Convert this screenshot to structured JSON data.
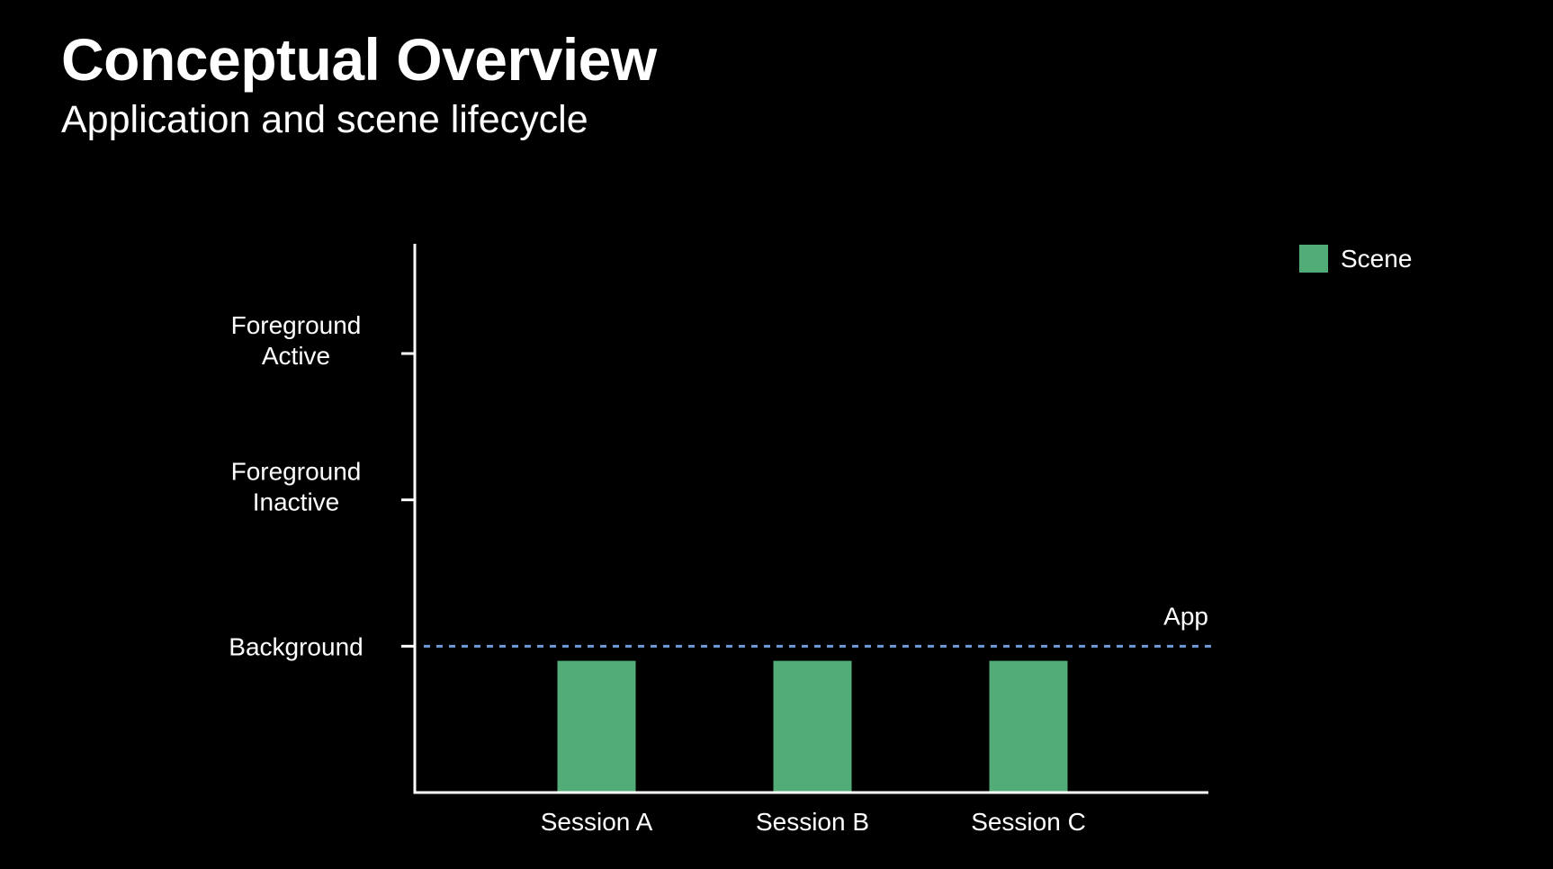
{
  "header": {
    "title": "Conceptual Overview",
    "subtitle": "Application and scene lifecycle"
  },
  "chart_data": {
    "type": "bar",
    "title": "Conceptual Overview",
    "subtitle": "Application and scene lifecycle",
    "categories": [
      "Session A",
      "Session B",
      "Session C"
    ],
    "series": [
      {
        "name": "Scene",
        "values": [
          0.9,
          0.9,
          0.9
        ],
        "color": "#52ac78"
      }
    ],
    "y_levels": [
      {
        "value": 1,
        "label": [
          "Background"
        ]
      },
      {
        "value": 2,
        "label": [
          "Foreground",
          "Inactive"
        ]
      },
      {
        "value": 3,
        "label": [
          "Foreground",
          "Active"
        ]
      }
    ],
    "ylim": [
      0,
      3.75
    ],
    "reference_line": {
      "name": "App",
      "value": 1,
      "style": "dashed",
      "color": "#6f9bd8"
    },
    "legend": {
      "position": "top-right",
      "entries": [
        "Scene"
      ]
    },
    "axis_color": "#ffffff",
    "grid": false
  }
}
